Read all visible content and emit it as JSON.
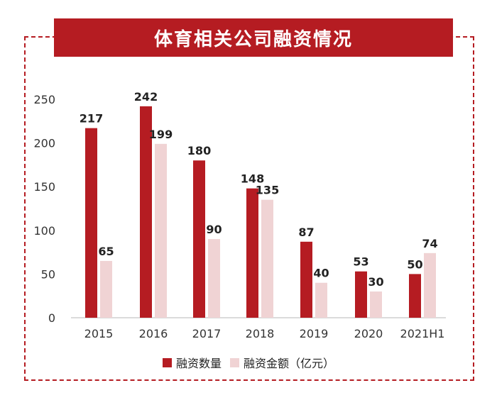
{
  "chart_data": {
    "type": "bar",
    "title": "体育相关公司融资情况",
    "categories": [
      "2015",
      "2016",
      "2017",
      "2018",
      "2019",
      "2020",
      "2021H1"
    ],
    "series": [
      {
        "name": "融资数量",
        "values": [
          217,
          242,
          180,
          148,
          87,
          53,
          50
        ],
        "color": "#b51c22"
      },
      {
        "name": "融资金额（亿元）",
        "values": [
          65,
          199,
          90,
          135,
          40,
          30,
          74
        ],
        "color": "#f0d3d4"
      }
    ],
    "yticks": [
      "0",
      "50",
      "100",
      "150",
      "200",
      "250"
    ],
    "ylim": [
      0,
      250
    ],
    "grid": false,
    "legend": "bottom"
  }
}
